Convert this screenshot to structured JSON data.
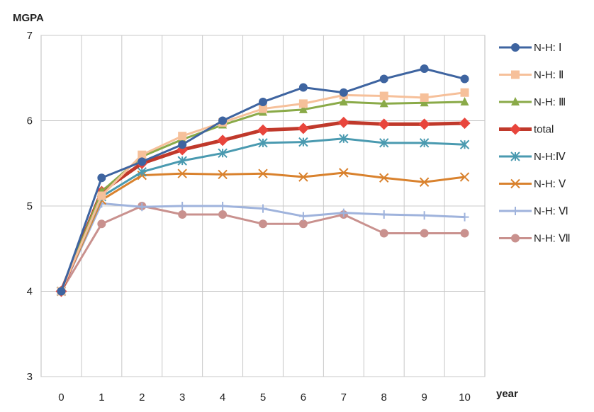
{
  "chart_data": {
    "type": "line",
    "ylabel": "MGPA",
    "xlabel": "year",
    "x": [
      0,
      1,
      2,
      3,
      4,
      5,
      6,
      7,
      8,
      9,
      10
    ],
    "xlim": [
      0,
      10
    ],
    "ylim": [
      3,
      7
    ],
    "yticks": [
      3,
      4,
      5,
      6,
      7
    ],
    "grid": true,
    "legend_position": "right",
    "series": [
      {
        "name": "N-H: Ⅰ",
        "color": "#3e64a0",
        "marker": "circle",
        "values": [
          4.0,
          5.33,
          5.52,
          5.72,
          6.0,
          6.22,
          6.39,
          6.33,
          6.49,
          6.61,
          6.49
        ]
      },
      {
        "name": "N-H: Ⅱ",
        "color": "#f6c09a",
        "marker": "square",
        "values": [
          4.0,
          5.12,
          5.6,
          5.82,
          5.98,
          6.14,
          6.2,
          6.3,
          6.29,
          6.27,
          6.33
        ]
      },
      {
        "name": "N-H: Ⅲ",
        "color": "#8aaa48",
        "marker": "triangle",
        "values": [
          4.0,
          5.17,
          5.58,
          5.78,
          5.95,
          6.1,
          6.13,
          6.22,
          6.2,
          6.21,
          6.22
        ]
      },
      {
        "name": "total",
        "color": "#c0392b",
        "marker": "diamond",
        "values": [
          4.0,
          5.17,
          5.5,
          5.66,
          5.77,
          5.89,
          5.91,
          5.98,
          5.96,
          5.96,
          5.97
        ]
      },
      {
        "name": "N-H:Ⅳ",
        "color": "#4a9ab0",
        "marker": "star",
        "values": [
          4.0,
          5.11,
          5.4,
          5.53,
          5.62,
          5.74,
          5.75,
          5.79,
          5.74,
          5.74,
          5.72
        ]
      },
      {
        "name": "N-H: Ⅴ",
        "color": "#d9822e",
        "marker": "x",
        "values": [
          4.0,
          5.07,
          5.36,
          5.38,
          5.37,
          5.38,
          5.34,
          5.39,
          5.33,
          5.28,
          5.34
        ]
      },
      {
        "name": "N-H: Ⅵ",
        "color": "#9fb3dc",
        "marker": "plus",
        "values": [
          4.0,
          5.03,
          4.99,
          5.0,
          5.0,
          4.97,
          4.88,
          4.92,
          4.9,
          4.89,
          4.87
        ]
      },
      {
        "name": "N-H: Ⅶ",
        "color": "#c9918e",
        "marker": "circle",
        "values": [
          4.0,
          4.79,
          5.0,
          4.9,
          4.9,
          4.79,
          4.79,
          4.9,
          4.68,
          4.68,
          4.68
        ]
      }
    ]
  }
}
